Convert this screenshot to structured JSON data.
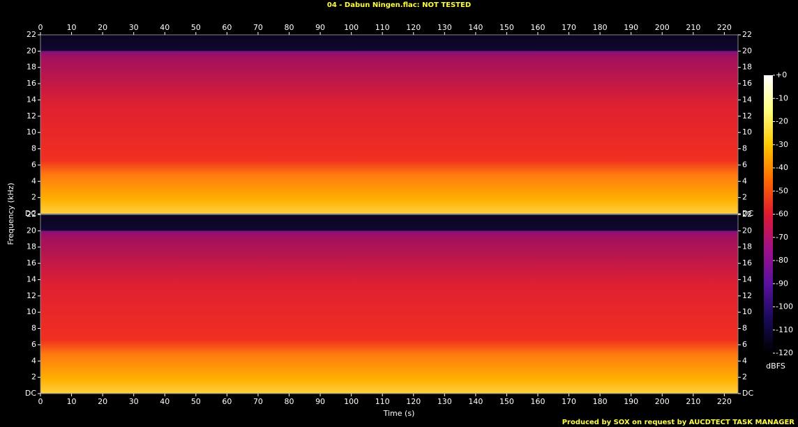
{
  "chart_data": {
    "type": "spectrogram",
    "title": "04 - Dabun Ningen.flac: NOT TESTED",
    "xlabel": "Time (s)",
    "ylabel": "Frequency (kHz)",
    "colorbar_label": "dBFS",
    "footer": "Produced by SOX on request by AUCDTECT TASK MANAGER",
    "xlim": [
      0,
      224.4
    ],
    "xticks": [
      0,
      10,
      20,
      30,
      40,
      50,
      60,
      70,
      80,
      90,
      100,
      110,
      120,
      130,
      140,
      150,
      160,
      170,
      180,
      190,
      200,
      210,
      220
    ],
    "ylim": [
      0,
      22
    ],
    "yticks": [
      {
        "value": 0,
        "label": "DC"
      },
      2,
      4,
      6,
      8,
      10,
      12,
      14,
      16,
      18,
      20,
      22
    ],
    "clim": [
      -120,
      0
    ],
    "cticks": [
      {
        "value": 0,
        "label": "+0"
      },
      -10,
      -20,
      -30,
      -40,
      -50,
      -60,
      -70,
      -80,
      -90,
      -100,
      -110,
      -120
    ],
    "colormap": [
      "#000000",
      "#1a0a5a",
      "#5a10a0",
      "#a0108a",
      "#e01830",
      "#ff6a00",
      "#ffc800",
      "#ffff80",
      "#ffffff"
    ]
  }
}
